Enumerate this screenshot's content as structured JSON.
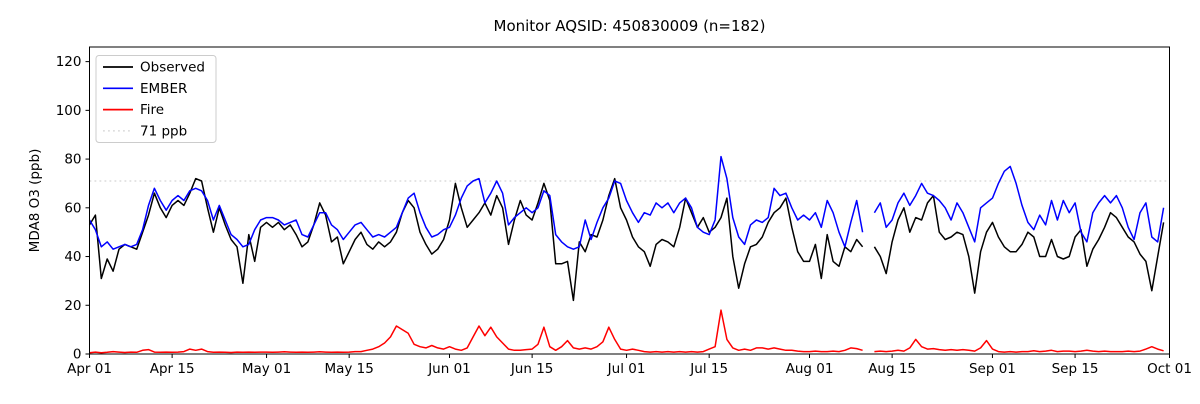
{
  "chart_data": {
    "type": "line",
    "title": "Monitor AQSID: 450830009 (n=182)",
    "xlabel": "",
    "ylabel": "MDA8 O3 (ppb)",
    "ylim": [
      0,
      126
    ],
    "y_ticks": [
      0,
      20,
      40,
      60,
      80,
      100,
      120
    ],
    "x_total_days": 183,
    "x_ticks": [
      {
        "day": 0,
        "label": "Apr 01"
      },
      {
        "day": 14,
        "label": "Apr 15"
      },
      {
        "day": 30,
        "label": "May 01"
      },
      {
        "day": 44,
        "label": "May 15"
      },
      {
        "day": 61,
        "label": "Jun 01"
      },
      {
        "day": 75,
        "label": "Jun 15"
      },
      {
        "day": 91,
        "label": "Jul 01"
      },
      {
        "day": 105,
        "label": "Jul 15"
      },
      {
        "day": 122,
        "label": "Aug 01"
      },
      {
        "day": 136,
        "label": "Aug 15"
      },
      {
        "day": 153,
        "label": "Sep 01"
      },
      {
        "day": 167,
        "label": "Sep 15"
      },
      {
        "day": 183,
        "label": "Oct 01"
      }
    ],
    "threshold": {
      "label": "71 ppb",
      "value": 71,
      "color": "#d3d3d3",
      "style": "dotted"
    },
    "grid": false,
    "legend_position": "upper-left",
    "note": "daily values Apr 01 through Sep 30; null = missing day (gap near Aug 11)",
    "series": [
      {
        "name": "Observed",
        "color": "#000000",
        "style": "solid",
        "values": [
          53,
          57,
          31,
          39,
          34,
          43,
          45,
          44,
          43,
          50,
          57,
          66,
          60,
          56,
          61,
          63,
          61,
          66,
          72,
          71,
          60,
          50,
          60,
          53,
          47,
          44,
          29,
          49,
          38,
          52,
          54,
          52,
          54,
          51,
          53,
          49,
          44,
          46,
          53,
          62,
          57,
          46,
          48,
          37,
          42,
          47,
          50,
          45,
          43,
          46,
          44,
          46,
          50,
          58,
          63,
          60,
          50,
          45,
          41,
          43,
          47,
          55,
          70,
          60,
          52,
          55,
          58,
          62,
          57,
          65,
          60,
          45,
          55,
          63,
          57,
          55,
          62,
          70,
          63,
          37,
          37,
          38,
          22,
          46,
          42,
          49,
          48,
          55,
          65,
          72,
          60,
          55,
          48,
          44,
          42,
          36,
          45,
          47,
          46,
          44,
          52,
          64,
          58,
          52,
          56,
          50,
          52,
          56,
          64,
          40,
          27,
          37,
          44,
          45,
          48,
          54,
          58,
          60,
          64,
          52,
          42,
          38,
          38,
          45,
          31,
          49,
          38,
          36,
          44,
          42,
          47,
          44,
          null,
          44,
          40,
          33,
          46,
          55,
          60,
          50,
          56,
          55,
          62,
          65,
          50,
          47,
          48,
          50,
          49,
          40,
          25,
          42,
          50,
          54,
          48,
          44,
          42,
          42,
          45,
          50,
          48,
          40,
          40,
          47,
          40,
          39,
          40,
          48,
          51,
          36,
          43,
          47,
          52,
          58,
          56,
          52,
          48,
          46,
          41,
          38,
          26,
          40,
          54
        ]
      },
      {
        "name": "EMBER",
        "color": "#0000ff",
        "style": "solid",
        "values": [
          55,
          51,
          44,
          46,
          43,
          44,
          45,
          44,
          45,
          51,
          61,
          68,
          63,
          59,
          63,
          65,
          63,
          67,
          68,
          67,
          63,
          55,
          61,
          55,
          49,
          47,
          44,
          45,
          51,
          55,
          56,
          56,
          55,
          53,
          54,
          55,
          49,
          48,
          53,
          58,
          58,
          53,
          51,
          47,
          50,
          53,
          54,
          51,
          48,
          49,
          48,
          50,
          52,
          58,
          64,
          66,
          58,
          52,
          48,
          49,
          51,
          52,
          57,
          64,
          69,
          71,
          72,
          62,
          66,
          71,
          66,
          53,
          56,
          58,
          60,
          58,
          60,
          67,
          65,
          49,
          46,
          44,
          43,
          44,
          55,
          47,
          54,
          60,
          64,
          71,
          70,
          63,
          58,
          54,
          58,
          57,
          62,
          60,
          62,
          58,
          62,
          64,
          60,
          52,
          50,
          49,
          55,
          81,
          72,
          56,
          48,
          45,
          53,
          55,
          54,
          56,
          68,
          65,
          66,
          60,
          55,
          57,
          55,
          58,
          52,
          63,
          58,
          50,
          44,
          54,
          63,
          50,
          null,
          58,
          62,
          52,
          55,
          62,
          66,
          61,
          65,
          70,
          66,
          65,
          63,
          60,
          55,
          62,
          58,
          52,
          46,
          60,
          62,
          64,
          70,
          75,
          77,
          70,
          61,
          54,
          51,
          57,
          53,
          63,
          55,
          63,
          58,
          62,
          50,
          46,
          58,
          62,
          65,
          62,
          65,
          60,
          52,
          47,
          58,
          62,
          48,
          46,
          60
        ]
      },
      {
        "name": "Fire",
        "color": "#ff0000",
        "style": "solid",
        "values": [
          0.5,
          0.8,
          0.5,
          0.7,
          1,
          0.8,
          0.6,
          0.8,
          0.7,
          1.5,
          1.8,
          0.8,
          0.7,
          0.8,
          0.7,
          0.8,
          1,
          2,
          1.5,
          2,
          1,
          0.7,
          0.8,
          0.7,
          0.6,
          0.8,
          0.7,
          0.8,
          0.7,
          0.8,
          0.8,
          0.7,
          0.8,
          0.9,
          0.8,
          0.7,
          0.8,
          0.7,
          0.8,
          0.9,
          0.8,
          0.7,
          0.8,
          0.7,
          0.8,
          1,
          1,
          1.5,
          2,
          3,
          4.5,
          7,
          11.5,
          10,
          8.5,
          4,
          3,
          2.5,
          3.5,
          2.5,
          2,
          3,
          2,
          1.5,
          2.5,
          7,
          11.5,
          7.5,
          11,
          7,
          4.5,
          2,
          1.5,
          1.5,
          1.8,
          2,
          4,
          11,
          3,
          1.5,
          3,
          5.5,
          2.5,
          2,
          2.5,
          2,
          3,
          5,
          11,
          6,
          2,
          1.5,
          2,
          1.5,
          1,
          0.8,
          1,
          0.8,
          1,
          0.8,
          1,
          0.8,
          1,
          0.8,
          1,
          2,
          3,
          18,
          6,
          2.5,
          1.5,
          2,
          1.5,
          2.5,
          2.5,
          2,
          2.5,
          2,
          1.5,
          1.5,
          1.2,
          1,
          1,
          1.2,
          1,
          1,
          1.2,
          1,
          1.5,
          2.5,
          2.2,
          1.5,
          null,
          1,
          1.2,
          1,
          1.2,
          1.5,
          1.2,
          2.5,
          6,
          3,
          2,
          2.2,
          1.8,
          1.5,
          1.8,
          1.5,
          1.8,
          1.5,
          1.2,
          2.5,
          5.5,
          2,
          1,
          0.8,
          1,
          0.8,
          1,
          1,
          1.3,
          1,
          1.2,
          1.5,
          1,
          1.2,
          1.2,
          1,
          1.2,
          1.5,
          1.2,
          1,
          1.2,
          1,
          1,
          1,
          1.2,
          1,
          1.2,
          2,
          3,
          2,
          1.3
        ]
      }
    ],
    "legend": [
      {
        "label": "Observed",
        "color": "#000000",
        "style": "solid"
      },
      {
        "label": "EMBER",
        "color": "#0000ff",
        "style": "solid"
      },
      {
        "label": "Fire",
        "color": "#ff0000",
        "style": "solid"
      },
      {
        "label": "71 ppb",
        "color": "#d3d3d3",
        "style": "dotted"
      }
    ],
    "colors": {
      "axis": "#000000",
      "background": "#ffffff",
      "legend_border": "#cccccc"
    }
  }
}
